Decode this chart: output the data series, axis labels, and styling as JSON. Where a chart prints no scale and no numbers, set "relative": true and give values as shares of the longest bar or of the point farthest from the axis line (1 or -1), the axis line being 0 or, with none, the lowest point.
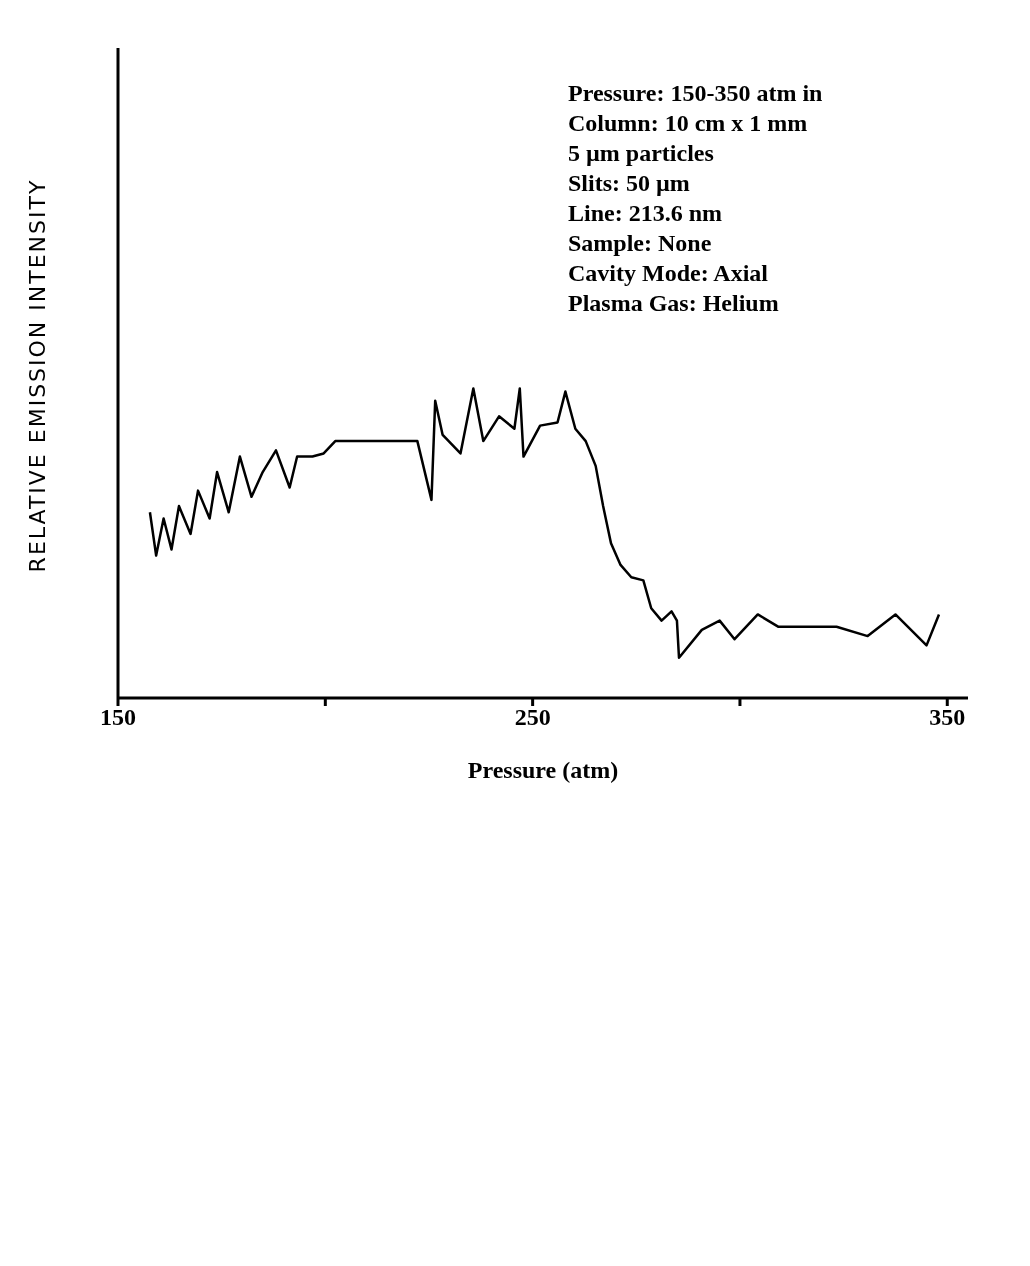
{
  "chart_data": {
    "type": "line",
    "xlabel": "Pressure (atm)",
    "ylabel": "RELATIVE EMISSION INTENSITY",
    "relative": true,
    "xlim": [
      150,
      355
    ],
    "xticks": [
      150,
      {
        "value": 200,
        "label": null
      },
      250,
      {
        "value": 300,
        "label": null
      },
      350
    ],
    "grid": false,
    "legend": false,
    "marker": "none",
    "line_style": "solid",
    "x": [
      157.7,
      159.2,
      161.0,
      162.9,
      164.7,
      167.5,
      169.3,
      172.1,
      173.9,
      176.7,
      179.4,
      182.2,
      184.9,
      188.1,
      191.4,
      193.2,
      196.9,
      199.6,
      202.4,
      215.9,
      222.2,
      225.6,
      226.5,
      228.3,
      232.6,
      235.7,
      238.1,
      241.9,
      245.6,
      246.9,
      247.8,
      251.8,
      256.0,
      257.9,
      260.3,
      262.8,
      265.2,
      267.0,
      268.9,
      271.2,
      273.8,
      276.7,
      278.6,
      281.1,
      283.5,
      284.8,
      285.3,
      290.8,
      295.1,
      298.7,
      304.3,
      309.3,
      317.5,
      323.3,
      330.8,
      337.5,
      345.0,
      348.0
    ],
    "series": [
      {
        "color": "#000000",
        "values": [
          0.6,
          0.46,
          0.58,
          0.48,
          0.62,
          0.53,
          0.67,
          0.58,
          0.73,
          0.6,
          0.78,
          0.65,
          0.73,
          0.8,
          0.68,
          0.78,
          0.78,
          0.79,
          0.83,
          0.83,
          0.83,
          0.64,
          0.96,
          0.85,
          0.79,
          1.0,
          0.83,
          0.91,
          0.87,
          1.0,
          0.78,
          0.88,
          0.89,
          0.99,
          0.87,
          0.83,
          0.75,
          0.62,
          0.5,
          0.43,
          0.39,
          0.38,
          0.29,
          0.25,
          0.28,
          0.25,
          0.13,
          0.22,
          0.25,
          0.19,
          0.27,
          0.23,
          0.23,
          0.23,
          0.2,
          0.27,
          0.17,
          0.27
        ]
      }
    ],
    "annotations": [
      "Pressure: 150-350 atm in",
      "Column: 10 cm x 1 mm",
      "5 µm particles",
      "Slits: 50 µm",
      "Line: 213.6 nm",
      "Sample: None",
      "Cavity Mode: Axial",
      "Plasma Gas: Helium"
    ]
  }
}
